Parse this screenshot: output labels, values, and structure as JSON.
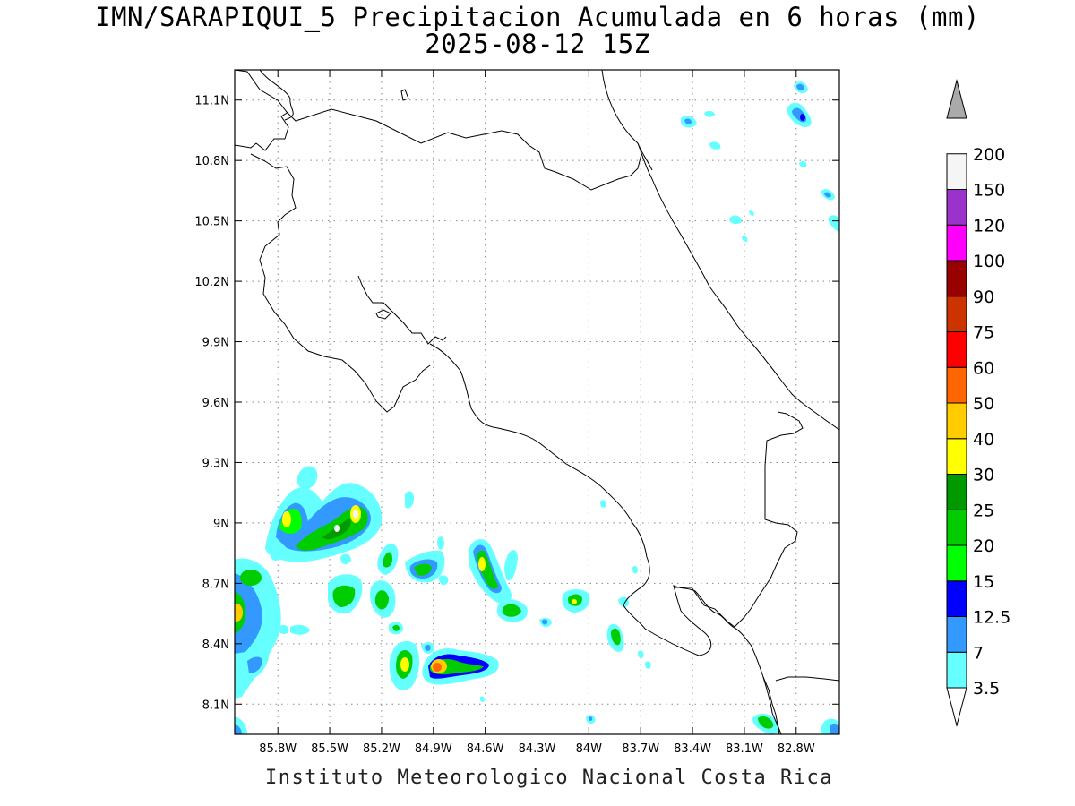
{
  "title": {
    "line1": "IMN/SARAPIQUI_5 Precipitacion Acumulada en 6 horas (mm)",
    "line2": "2025-08-12 15Z"
  },
  "footer": "Instituto Meteorologico Nacional Costa Rica",
  "map": {
    "lon_range": [
      -86.05,
      -82.55
    ],
    "lat_range": [
      7.95,
      11.25
    ],
    "lon_ticks": [
      {
        "value": -85.8,
        "label": "85.8W"
      },
      {
        "value": -85.5,
        "label": "85.5W"
      },
      {
        "value": -85.2,
        "label": "85.2W"
      },
      {
        "value": -84.9,
        "label": "84.9W"
      },
      {
        "value": -84.6,
        "label": "84.6W"
      },
      {
        "value": -84.3,
        "label": "84.3W"
      },
      {
        "value": -84.0,
        "label": "84W"
      },
      {
        "value": -83.7,
        "label": "83.7W"
      },
      {
        "value": -83.4,
        "label": "83.4W"
      },
      {
        "value": -83.1,
        "label": "83.1W"
      },
      {
        "value": -82.8,
        "label": "82.8W"
      }
    ],
    "lat_ticks": [
      {
        "value": 11.1,
        "label": "11.1N"
      },
      {
        "value": 10.8,
        "label": "10.8N"
      },
      {
        "value": 10.5,
        "label": "10.5N"
      },
      {
        "value": 10.2,
        "label": "10.2N"
      },
      {
        "value": 9.9,
        "label": "9.9N"
      },
      {
        "value": 9.6,
        "label": "9.6N"
      },
      {
        "value": 9.3,
        "label": "9.3N"
      },
      {
        "value": 9.0,
        "label": "9N"
      },
      {
        "value": 8.7,
        "label": "8.7N"
      },
      {
        "value": 8.4,
        "label": "8.4N"
      },
      {
        "value": 8.1,
        "label": "8.1N"
      }
    ],
    "grid": "dotted"
  },
  "colorbar": {
    "labels": [
      "3.5",
      "7",
      "12.5",
      "15",
      "20",
      "25",
      "30",
      "40",
      "50",
      "60",
      "75",
      "90",
      "100",
      "120",
      "150",
      "200"
    ],
    "colors": [
      "#66ffff",
      "#3399ff",
      "#0000ff",
      "#00ff00",
      "#00cc00",
      "#009900",
      "#ffff00",
      "#ffcc00",
      "#ff6600",
      "#ff0000",
      "#cc3300",
      "#990000",
      "#ff00ff",
      "#9933cc",
      "#f5f5f5",
      "#aaaaaa"
    ]
  }
}
